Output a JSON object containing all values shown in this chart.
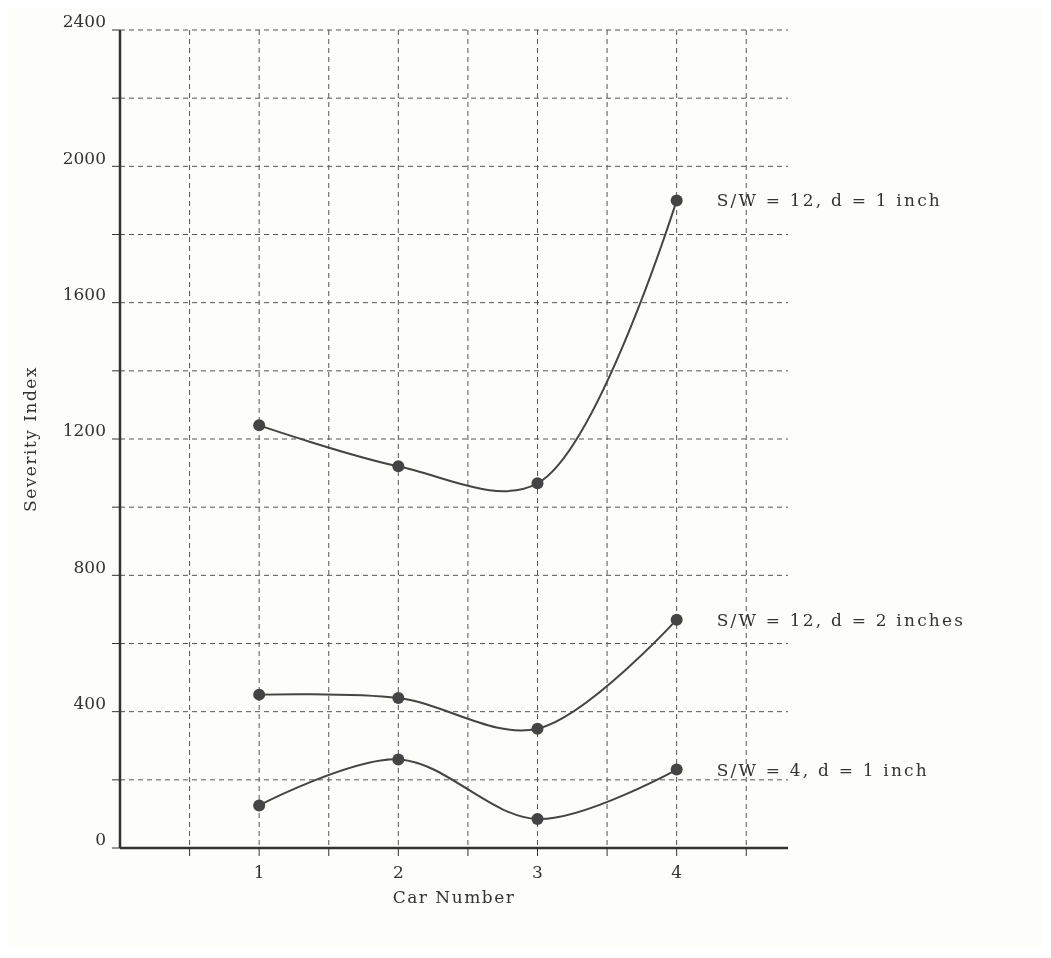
{
  "chart_data": {
    "type": "line",
    "xlabel": "Car Number",
    "ylabel": "Severity Index",
    "x": [
      1,
      2,
      3,
      4
    ],
    "xlim": [
      0,
      4.8
    ],
    "xticks": [
      {
        "value": 0.5,
        "label": null
      },
      1,
      {
        "value": 1.5,
        "label": null
      },
      2,
      {
        "value": 2.5,
        "label": null
      },
      3,
      {
        "value": 3.5,
        "label": null
      },
      4,
      {
        "value": 4.5,
        "label": null
      }
    ],
    "ylim": [
      0,
      2400
    ],
    "yticks": [
      0,
      {
        "value": 200,
        "label": null
      },
      400,
      {
        "value": 600,
        "label": null
      },
      800,
      {
        "value": 1000,
        "label": null
      },
      1200,
      {
        "value": 1400,
        "label": null
      },
      1600,
      {
        "value": 1800,
        "label": null
      },
      2000,
      {
        "value": 2200,
        "label": null
      },
      2400
    ],
    "grid": true,
    "marker": "circle",
    "line_style": "solid",
    "series": [
      {
        "name": "S/W = 12, d = 1 inch",
        "color": "#444444",
        "values": [
          1240,
          1120,
          1070,
          1900
        ]
      },
      {
        "name": "S/W = 12, d = 2 inches",
        "color": "#444444",
        "values": [
          450,
          440,
          350,
          670
        ]
      },
      {
        "name": "S/W = 4, d = 1 inch",
        "color": "#444444",
        "values": [
          125,
          260,
          85,
          230
        ]
      }
    ]
  }
}
